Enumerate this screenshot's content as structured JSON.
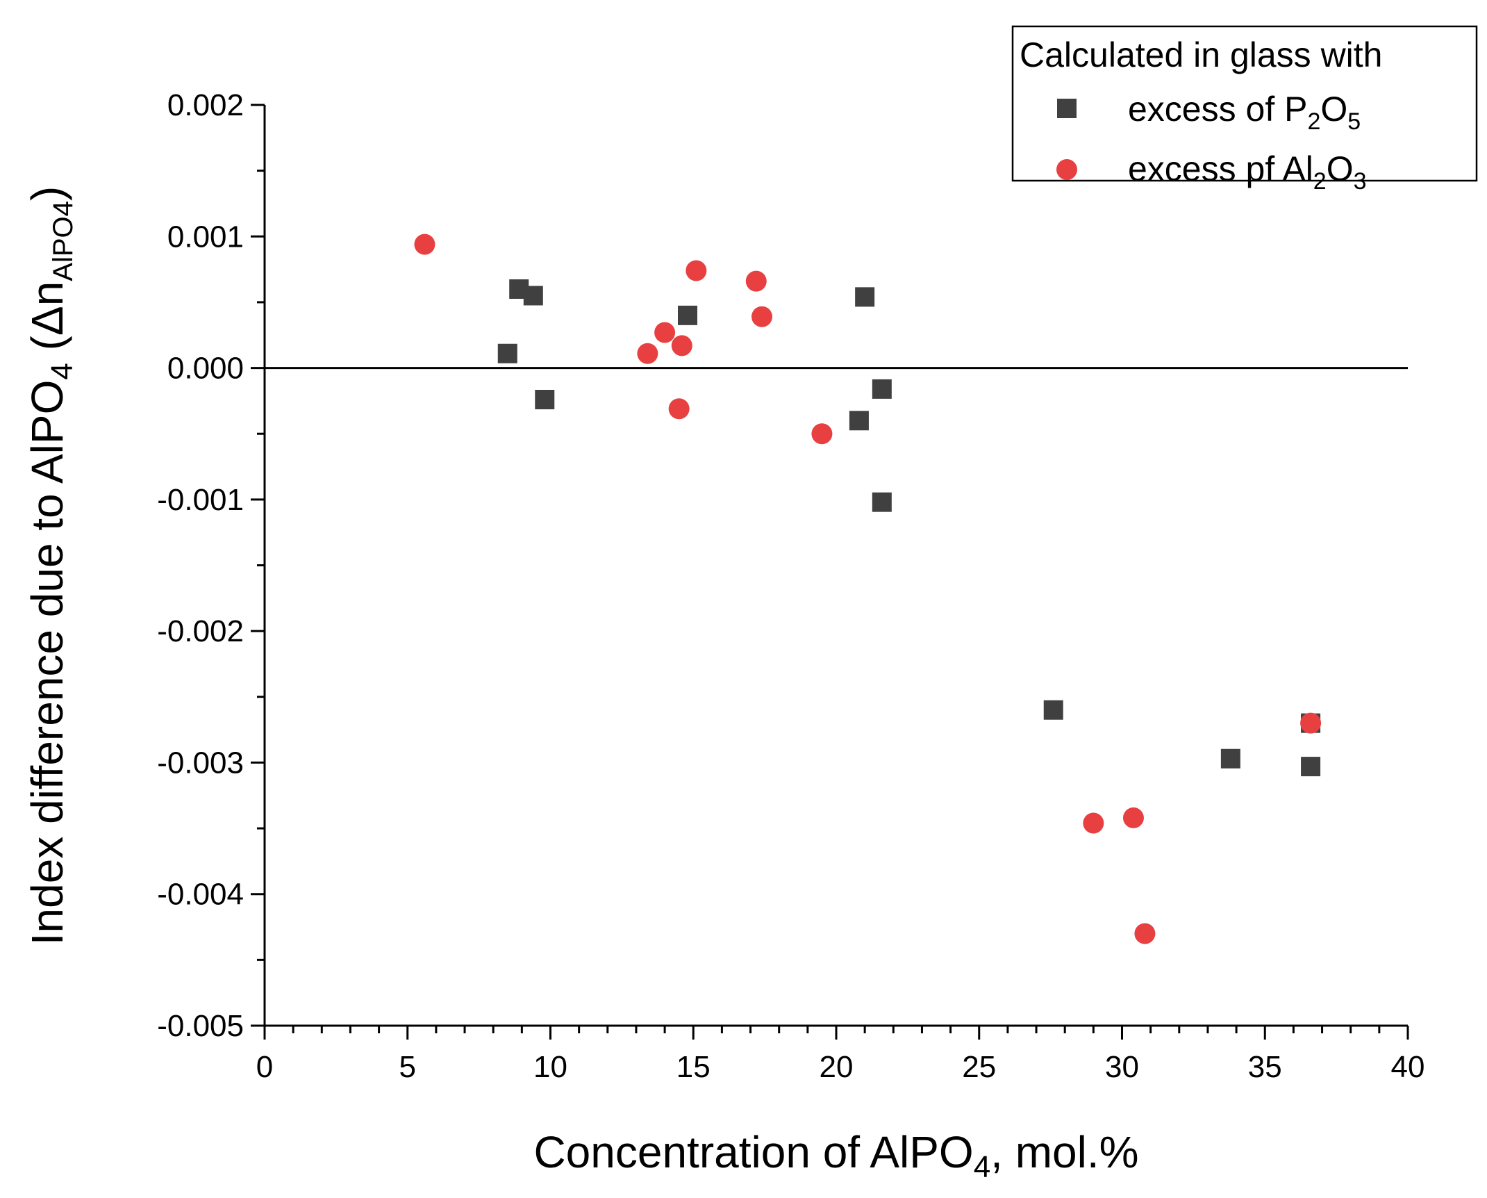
{
  "chart_data": {
    "type": "scatter",
    "xlabel": "Concentration of AlPO4, mol.%",
    "xlabel_parts": {
      "main": "Concentration of AlPO",
      "sub": "4",
      "rest": ", mol.%"
    },
    "ylabel": "Index difference due to AlPO4 (Δn AlPO4)",
    "ylabel_parts": {
      "main": "Index difference due to AlPO",
      "sub1": "4",
      "mid": " (Δn",
      "sub2": "AlPO4",
      "end": ")"
    },
    "xlim": [
      0,
      40
    ],
    "ylim": [
      -0.005,
      0.002
    ],
    "x_ticks": [
      0,
      5,
      10,
      15,
      20,
      25,
      30,
      35,
      40
    ],
    "x_tick_labels": [
      "0",
      "5",
      "10",
      "15",
      "20",
      "25",
      "30",
      "35",
      "40"
    ],
    "y_ticks": [
      -0.005,
      -0.004,
      -0.003,
      -0.002,
      -0.001,
      0.0,
      0.001,
      0.002
    ],
    "y_tick_labels": [
      "-0.005",
      "-0.004",
      "-0.003",
      "-0.002",
      "-0.001",
      "0.000",
      "0.001",
      "0.002"
    ],
    "reference_line_y": 0,
    "legend": {
      "title": "Calculated in glass with",
      "placement": "top-right",
      "entries": [
        {
          "parts": {
            "main": "excess of P",
            "s1": "2",
            "mid": "O",
            "s2": "5"
          }
        },
        {
          "parts": {
            "main": "excess pf Al",
            "s1": "2",
            "mid": "O",
            "s2": "3"
          }
        }
      ]
    },
    "series": [
      {
        "name": "excess of P2O5",
        "marker": "square",
        "color": "#404040",
        "points": [
          [
            8.5,
            0.00011
          ],
          [
            8.9,
            0.0006
          ],
          [
            9.4,
            0.00055
          ],
          [
            9.8,
            -0.00024
          ],
          [
            14.8,
            0.0004
          ],
          [
            21.0,
            0.00054
          ],
          [
            20.8,
            -0.0004
          ],
          [
            21.6,
            -0.00016
          ],
          [
            21.6,
            -0.00102
          ],
          [
            27.6,
            -0.0026
          ],
          [
            33.8,
            -0.00297
          ],
          [
            36.6,
            -0.00303
          ],
          [
            36.6,
            -0.0027
          ]
        ]
      },
      {
        "name": "excess pf Al2O3",
        "marker": "circle",
        "color": "#e84040",
        "points": [
          [
            5.6,
            0.00094
          ],
          [
            13.4,
            0.00011
          ],
          [
            14.0,
            0.00027
          ],
          [
            14.6,
            0.00017
          ],
          [
            14.5,
            -0.00031
          ],
          [
            15.1,
            0.00074
          ],
          [
            17.2,
            0.00066
          ],
          [
            17.4,
            0.00039
          ],
          [
            19.5,
            -0.0005
          ],
          [
            29.0,
            -0.00346
          ],
          [
            30.4,
            -0.00342
          ],
          [
            30.8,
            -0.0043
          ],
          [
            36.6,
            -0.0027
          ]
        ]
      }
    ]
  }
}
